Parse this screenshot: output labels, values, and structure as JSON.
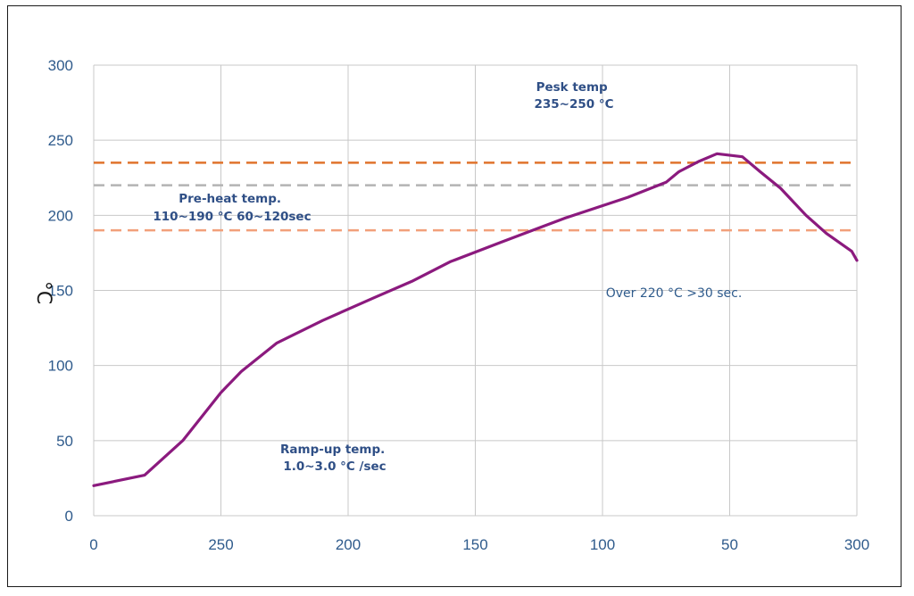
{
  "chart_data": {
    "type": "line",
    "title": "",
    "xlabel": "",
    "ylabel": "°C",
    "x_tick_labels": [
      "0",
      "250",
      "200",
      "150",
      "100",
      "50",
      "300"
    ],
    "y_ticks": [
      0,
      50,
      100,
      150,
      200,
      250,
      300
    ],
    "ylim": [
      0,
      300
    ],
    "grid": true,
    "series": [
      {
        "color": "#8b1a7e",
        "x": [
          0,
          20,
          35,
          50,
          58,
          72,
          90,
          110,
          125,
          140,
          160,
          185,
          210,
          225,
          230,
          238,
          245,
          255,
          262,
          270,
          280,
          288,
          298,
          300
        ],
        "values": [
          20,
          27,
          50,
          82,
          96,
          115,
          130,
          145,
          156,
          169,
          182,
          198,
          212,
          222,
          229,
          236,
          241,
          239,
          229,
          218,
          200,
          188,
          176,
          170
        ]
      }
    ],
    "reference_lines": [
      {
        "y": 235,
        "color": "#e0732d"
      },
      {
        "y": 220,
        "color": "#b3b3b3"
      },
      {
        "y": 190,
        "color": "#f2a07b"
      }
    ],
    "annotations": [
      {
        "lines": [
          "Pesk temp",
          "235~250 °C"
        ],
        "bold": true
      },
      {
        "lines": [
          "Pre-heat temp.",
          "110~190 °C 60~120sec"
        ],
        "bold": true
      },
      {
        "lines": [
          "Over 220 °C >30 sec."
        ],
        "bold": false
      },
      {
        "lines": [
          "Ramp-up temp.",
          "1.0~3.0 °C /sec"
        ],
        "bold": true
      }
    ]
  }
}
